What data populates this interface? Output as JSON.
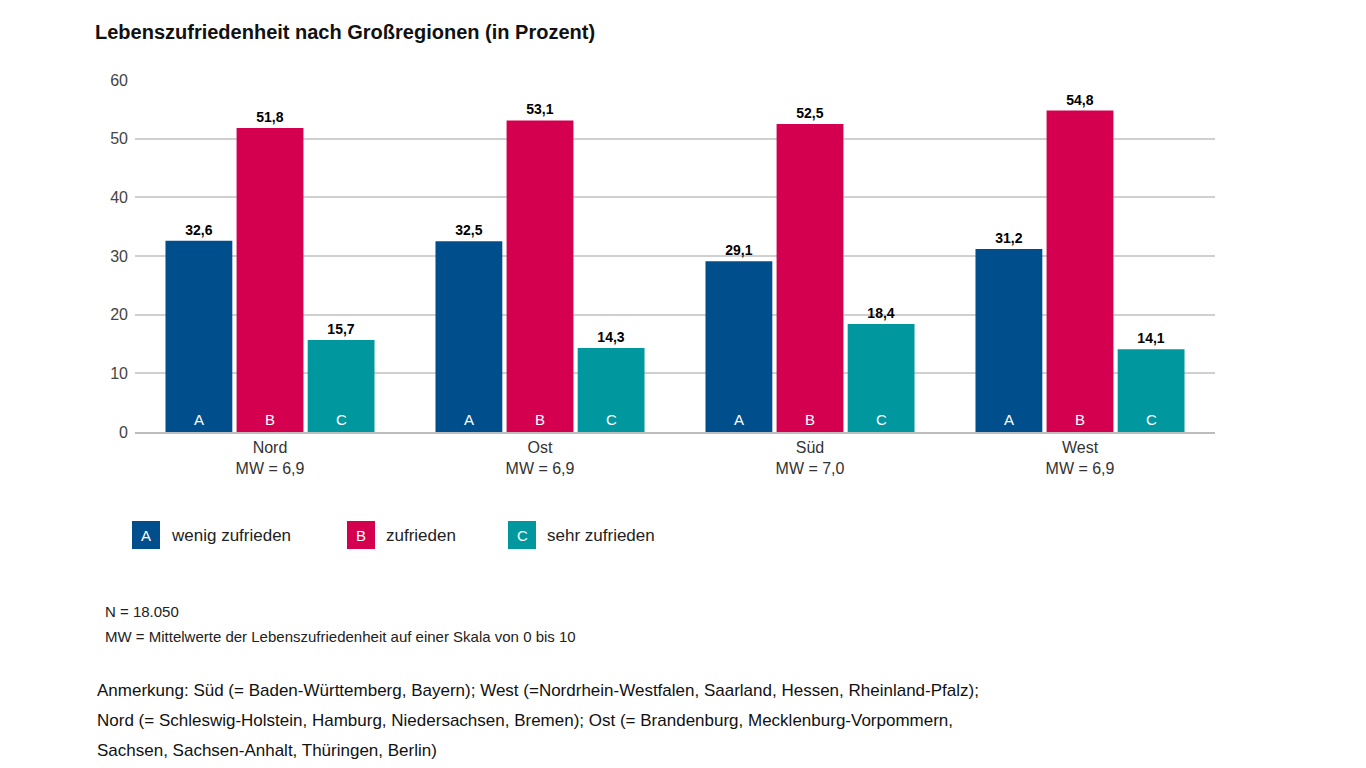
{
  "chart_data": {
    "type": "bar",
    "title": "Lebenszufriedenheit nach Großregionen (in Prozent)",
    "categories": [
      "Nord\nMW = 6,9",
      "Ost\nMW = 6,9",
      "Süd\nMW = 7,0",
      "West\nMW = 6,9"
    ],
    "series": [
      {
        "name": "wenig zufrieden",
        "abbreviation": "A",
        "color": "#004f8c",
        "values": [
          32.6,
          32.5,
          29.1,
          31.2
        ],
        "value_labels": [
          "32,6",
          "32,5",
          "29,1",
          "31,2"
        ]
      },
      {
        "name": "zufrieden",
        "abbreviation": "B",
        "color": "#d4004f",
        "values": [
          51.8,
          53.1,
          52.5,
          54.8
        ],
        "value_labels": [
          "51,8",
          "53,1",
          "52,5",
          "54,8"
        ]
      },
      {
        "name": "sehr zufrieden",
        "abbreviation": "C",
        "color": "#00979f",
        "values": [
          15.7,
          14.3,
          18.4,
          14.1
        ],
        "value_labels": [
          "15,7",
          "14,3",
          "18,4",
          "14,1"
        ]
      }
    ],
    "ylim": [
      0,
      60
    ],
    "yticks": [
      0,
      10,
      20,
      30,
      40,
      50,
      60
    ],
    "grid": true,
    "data_labels": true,
    "legend": "bottom",
    "notes": [
      "N = 18.050",
      "MW = Mittelwerte der Lebenszufriedenheit auf einer Skala von 0 bis 10"
    ],
    "footnote": [
      "Anmerkung: Süd (= Baden-Württemberg, Bayern); West (=Nordrhein-Westfalen, Saarland, Hessen, Rheinland-Pfalz);",
      "Nord (= Schleswig-Holstein, Hamburg, Niedersachsen, Bremen); Ost (= Brandenburg, Mecklenburg-Vorpommern,",
      "Sachsen, Sachsen-Anhalt, Thüringen, Berlin)"
    ]
  }
}
